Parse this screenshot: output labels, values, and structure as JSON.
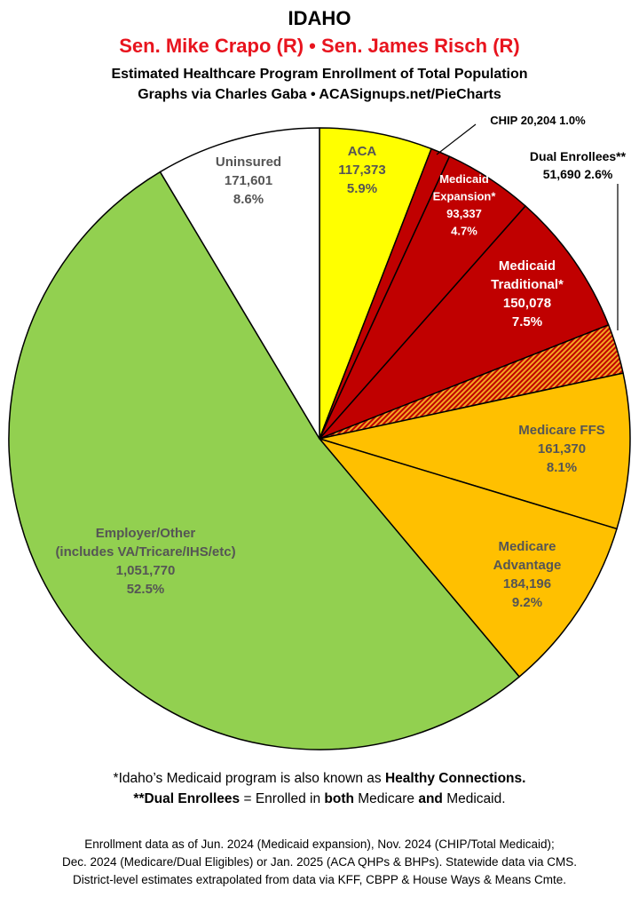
{
  "header": {
    "title": "IDAHO",
    "senators": "Sen. Mike Crapo (R) • Sen. James Risch (R)",
    "subtitle": "Estimated Healthcare Program Enrollment of Total Population",
    "credit": "Graphs via Charles Gaba   •   ACASignups.net/PieCharts"
  },
  "chart_data": {
    "type": "pie",
    "start_angle": "12 o'clock",
    "direction": "clockwise",
    "slices": [
      {
        "label": "ACA",
        "value": 117373,
        "percent": "5.9%",
        "color": "#ffff00"
      },
      {
        "label": "CHIP",
        "value": 20204,
        "percent": "1.0%",
        "color": "#c00000"
      },
      {
        "label": "Medicaid Expansion*",
        "value": 93337,
        "percent": "4.7%",
        "color": "#c00000"
      },
      {
        "label": "Medicaid Traditional*",
        "value": 150078,
        "percent": "7.5%",
        "color": "#c00000"
      },
      {
        "label": "Dual Enrollees**",
        "value": 51690,
        "percent": "2.6%",
        "color": "#e8560e",
        "pattern": "hatched"
      },
      {
        "label": "Medicare FFS",
        "value": 161370,
        "percent": "8.1%",
        "color": "#ffc000"
      },
      {
        "label": "Medicare Advantage",
        "value": 184196,
        "percent": "9.2%",
        "color": "#ffc000"
      },
      {
        "label": "Employer/Other (includes VA/Tricare/IHS/etc)",
        "value": 1051770,
        "percent": "52.5%",
        "color": "#92d050"
      },
      {
        "label": "Uninsured",
        "value": 171601,
        "percent": "8.6%",
        "color": "#ffffff"
      }
    ],
    "slice_labels": [
      {
        "lines": [
          "ACA",
          "117,373",
          "5.9%"
        ],
        "color": "#555555"
      },
      {
        "lines": [
          "CHIP 20,204 1.0%"
        ],
        "color": "#000000"
      },
      {
        "lines": [
          "Medicaid",
          "Expansion*",
          "93,337",
          "4.7%"
        ],
        "color": "#ffffff"
      },
      {
        "lines": [
          "Medicaid",
          "Traditional*",
          "150,078",
          "7.5%"
        ],
        "color": "#ffffff"
      },
      {
        "lines": [
          "Dual Enrollees**",
          "51,690 2.6%"
        ],
        "color": "#000000"
      },
      {
        "lines": [
          "Medicare FFS",
          "161,370",
          "8.1%"
        ],
        "color": "#555555"
      },
      {
        "lines": [
          "Medicare",
          "Advantage",
          "184,196",
          "9.2%"
        ],
        "color": "#555555"
      },
      {
        "lines": [
          "Employer/Other",
          "(includes VA/Tricare/IHS/etc)",
          "1,051,770",
          "52.5%"
        ],
        "color": "#555555"
      },
      {
        "lines": [
          "Uninsured",
          "171,601",
          "8.6%"
        ],
        "color": "#555555"
      }
    ]
  },
  "footnotes": {
    "line1_pre": "*Idaho’s Medicaid program is also known as ",
    "line1_bold": "Healthy Connections.",
    "line2_b1": "**Dual Enrollees",
    "line2_t1": " = Enrolled in ",
    "line2_b2": "both",
    "line2_t2": " Medicare ",
    "line2_b3": "and",
    "line2_t3": " Medicaid."
  },
  "source": {
    "line1": "Enrollment data as of Jun. 2024 (Medicaid expansion), Nov. 2024 (CHIP/Total Medicaid);",
    "line2": "Dec. 2024 (Medicare/Dual Eligibles) or Jan. 2025 (ACA QHPs & BHPs). Statewide data via CMS.",
    "line3": "District-level estimates extrapolated from data via KFF, CBPP & House Ways & Means Cmte."
  }
}
